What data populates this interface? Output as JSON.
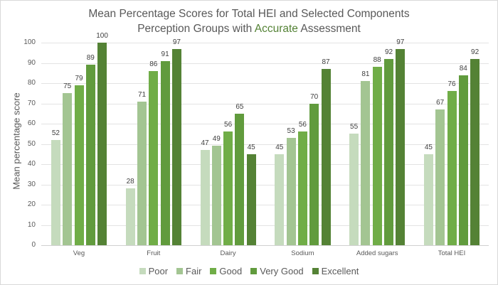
{
  "chart_data": {
    "type": "bar",
    "title": "Mean Percentage Scores for Total HEI and Selected Components",
    "subtitle_parts": [
      "Perception Groups with ",
      "Accurate",
      " Assessment"
    ],
    "subtitle_accent_color": "#548235",
    "xlabel": "",
    "ylabel": "Mean percentage score",
    "ylim": [
      0,
      100
    ],
    "yticks": [
      0,
      10,
      20,
      30,
      40,
      50,
      60,
      70,
      80,
      90,
      100
    ],
    "grid": true,
    "legend_position": "bottom",
    "categories": [
      "Veg",
      "Fruit",
      "Dairy",
      "Sodium",
      "Added sugars",
      "Total HEI"
    ],
    "series": [
      {
        "name": "Poor",
        "color": "#c5dbbd",
        "values": [
          52,
          28,
          47,
          45,
          55,
          45
        ]
      },
      {
        "name": "Fair",
        "color": "#a3c592",
        "values": [
          75,
          71,
          49,
          53,
          81,
          67
        ]
      },
      {
        "name": "Good",
        "color": "#70ad47",
        "values": [
          79,
          86,
          56,
          56,
          88,
          76
        ]
      },
      {
        "name": "Very Good",
        "color": "#619b3d",
        "values": [
          89,
          91,
          65,
          70,
          92,
          84
        ]
      },
      {
        "name": "Excellent",
        "color": "#548235",
        "values": [
          100,
          97,
          45,
          87,
          97,
          92
        ]
      }
    ]
  }
}
